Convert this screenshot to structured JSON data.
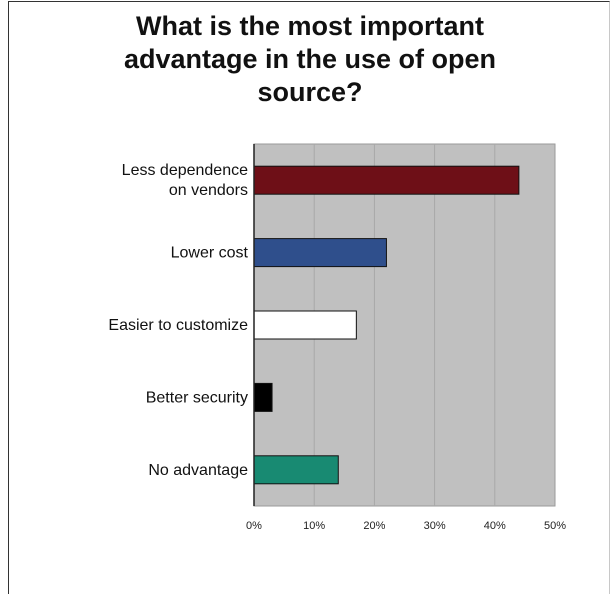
{
  "chart_data": {
    "type": "bar",
    "orientation": "horizontal",
    "title": "What is the most important\nadvantage in the use of open\nsource?",
    "xlabel": "",
    "ylabel": "",
    "categories": [
      "Less dependence on vendors",
      "Lower cost",
      "Easier to customize",
      "Better security",
      "No advantage"
    ],
    "category_lines": [
      [
        "Less dependence",
        "on vendors"
      ],
      [
        "Lower cost"
      ],
      [
        "Easier to customize"
      ],
      [
        "Better security"
      ],
      [
        "No advantage"
      ]
    ],
    "values": [
      44,
      22,
      17,
      3,
      14
    ],
    "colors": [
      "#6e0f17",
      "#2f4f8c",
      "#ffffff",
      "#000000",
      "#188a72"
    ],
    "xlim": [
      0,
      50
    ],
    "xticks": [
      0,
      10,
      20,
      30,
      40,
      50
    ],
    "xtick_labels": [
      "0%",
      "10%",
      "20%",
      "30%",
      "40%",
      "50%"
    ],
    "plot_background": "#c0c0c0",
    "grid": true
  }
}
